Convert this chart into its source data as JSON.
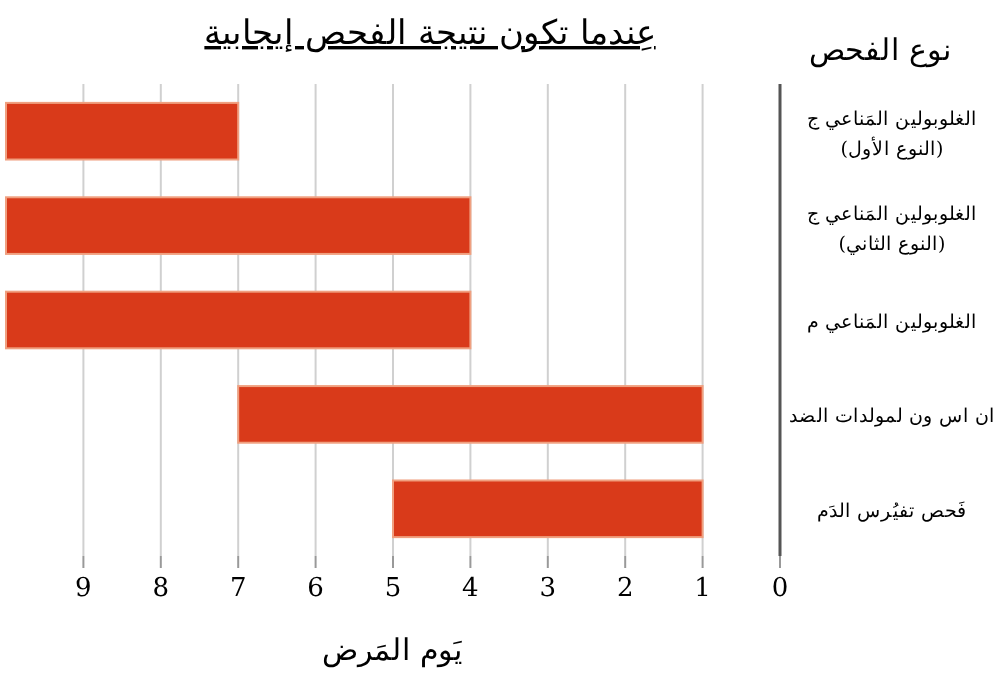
{
  "chart_data": {
    "type": "bar",
    "orientation": "horizontal",
    "title": "عِندما تكون نتيجة الفحص إيجابية",
    "xlabel": "يَوم المَرض",
    "ylabel": "نوع الفحص",
    "categories": [
      "الغلوبولين المَناعي ج\n(النوع الأول)",
      "الغلوبولين المَناعي ج\n(النوع الثاني)",
      "الغلوبولين المَناعي م",
      "ان اس ون لمولدات الضد",
      "فَحص تفيُرس الدَم"
    ],
    "base": [
      7,
      4,
      4,
      1,
      1
    ],
    "values": [
      3,
      6,
      6,
      6,
      4
    ],
    "color": "#d93a1a",
    "xlim": [
      10,
      0
    ],
    "xticks": [
      0,
      1,
      2,
      3,
      4,
      5,
      6,
      7,
      8,
      9
    ],
    "grid": "x"
  }
}
